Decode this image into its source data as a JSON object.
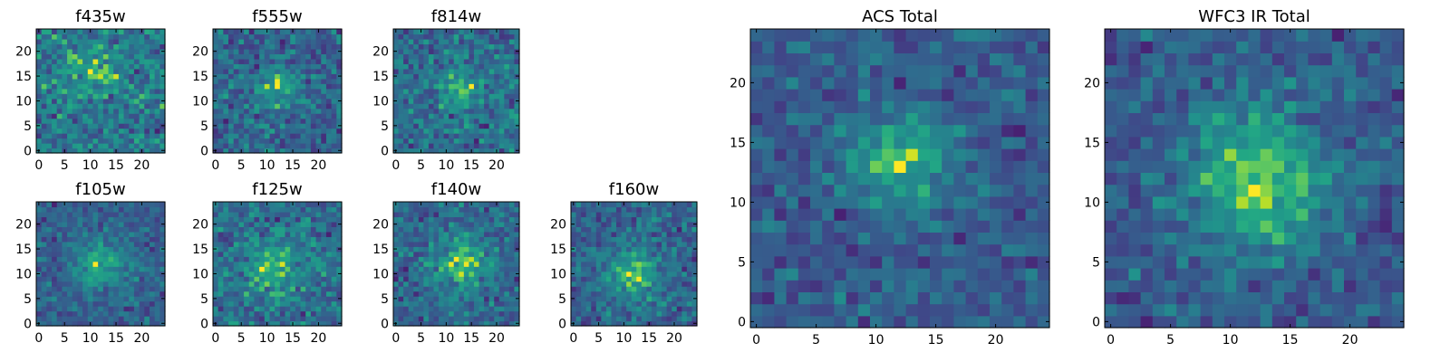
{
  "chart_data": [
    {
      "type": "heatmap",
      "title": "f435w",
      "grid_size": 25,
      "xlim": [
        -0.5,
        24.5
      ],
      "ylim": [
        -0.5,
        24.5
      ],
      "xticks": [
        0,
        5,
        10,
        15,
        20
      ],
      "yticks": [
        0,
        5,
        10,
        15,
        20
      ],
      "center": [
        10.5,
        15.5
      ],
      "peak": 0.55,
      "sigma": 3.0,
      "noise": 0.95,
      "seed": 11,
      "colormap": "viridis"
    },
    {
      "type": "heatmap",
      "title": "f555w",
      "grid_size": 25,
      "xlim": [
        -0.5,
        24.5
      ],
      "ylim": [
        -0.5,
        24.5
      ],
      "xticks": [
        0,
        5,
        10,
        15,
        20
      ],
      "yticks": [
        0,
        5,
        10,
        15,
        20
      ],
      "center": [
        12.0,
        13.0
      ],
      "peak": 0.6,
      "sigma": 3.0,
      "noise": 0.9,
      "seed": 23,
      "colormap": "viridis"
    },
    {
      "type": "heatmap",
      "title": "f814w",
      "grid_size": 25,
      "xlim": [
        -0.5,
        24.5
      ],
      "ylim": [
        -0.5,
        24.5
      ],
      "xticks": [
        0,
        5,
        10,
        15,
        20
      ],
      "yticks": [
        0,
        5,
        10,
        15,
        20
      ],
      "center": [
        13.0,
        12.5
      ],
      "peak": 0.7,
      "sigma": 2.5,
      "noise": 0.9,
      "seed": 37,
      "colormap": "viridis"
    },
    {
      "type": "heatmap",
      "title": "f105w",
      "grid_size": 25,
      "xlim": [
        -0.5,
        24.5
      ],
      "ylim": [
        -0.5,
        24.5
      ],
      "xticks": [
        0,
        5,
        10,
        15,
        20
      ],
      "yticks": [
        0,
        5,
        10,
        15,
        20
      ],
      "center": [
        12.0,
        12.0
      ],
      "peak": 0.8,
      "sigma": 3.5,
      "noise": 0.75,
      "seed": 41,
      "colormap": "viridis"
    },
    {
      "type": "heatmap",
      "title": "f125w",
      "grid_size": 25,
      "xlim": [
        -0.5,
        24.5
      ],
      "ylim": [
        -0.5,
        24.5
      ],
      "xticks": [
        0,
        5,
        10,
        15,
        20
      ],
      "yticks": [
        0,
        5,
        10,
        15,
        20
      ],
      "center": [
        11.0,
        11.0
      ],
      "peak": 0.65,
      "sigma": 3.5,
      "noise": 0.85,
      "seed": 53,
      "colormap": "viridis"
    },
    {
      "type": "heatmap",
      "title": "f140w",
      "grid_size": 25,
      "xlim": [
        -0.5,
        24.5
      ],
      "ylim": [
        -0.5,
        24.5
      ],
      "xticks": [
        0,
        5,
        10,
        15,
        20
      ],
      "yticks": [
        0,
        5,
        10,
        15,
        20
      ],
      "center": [
        13.0,
        12.0
      ],
      "peak": 0.75,
      "sigma": 4.0,
      "noise": 0.8,
      "seed": 67,
      "colormap": "viridis"
    },
    {
      "type": "heatmap",
      "title": "f160w",
      "grid_size": 25,
      "xlim": [
        -0.5,
        24.5
      ],
      "ylim": [
        -0.5,
        24.5
      ],
      "xticks": [
        0,
        5,
        10,
        15,
        20
      ],
      "yticks": [
        0,
        5,
        10,
        15,
        20
      ],
      "center": [
        12.0,
        10.0
      ],
      "peak": 0.8,
      "sigma": 3.5,
      "noise": 0.8,
      "seed": 79,
      "colormap": "viridis"
    },
    {
      "type": "heatmap",
      "title": "ACS Total",
      "grid_size": 25,
      "xlim": [
        -0.5,
        24.5
      ],
      "ylim": [
        -0.5,
        24.5
      ],
      "xticks": [
        0,
        5,
        10,
        15,
        20
      ],
      "yticks": [
        0,
        5,
        10,
        15,
        20
      ],
      "center": [
        12.0,
        13.5
      ],
      "peak": 0.85,
      "sigma": 3.0,
      "noise": 0.7,
      "seed": 97,
      "colormap": "viridis"
    },
    {
      "type": "heatmap",
      "title": "WFC3 IR Total",
      "grid_size": 25,
      "xlim": [
        -0.5,
        24.5
      ],
      "ylim": [
        -0.5,
        24.5
      ],
      "xticks": [
        0,
        5,
        10,
        15,
        20
      ],
      "yticks": [
        0,
        5,
        10,
        15,
        20
      ],
      "center": [
        12.0,
        12.0
      ],
      "peak": 0.9,
      "sigma": 4.0,
      "noise": 0.6,
      "seed": 103,
      "colormap": "viridis"
    }
  ]
}
